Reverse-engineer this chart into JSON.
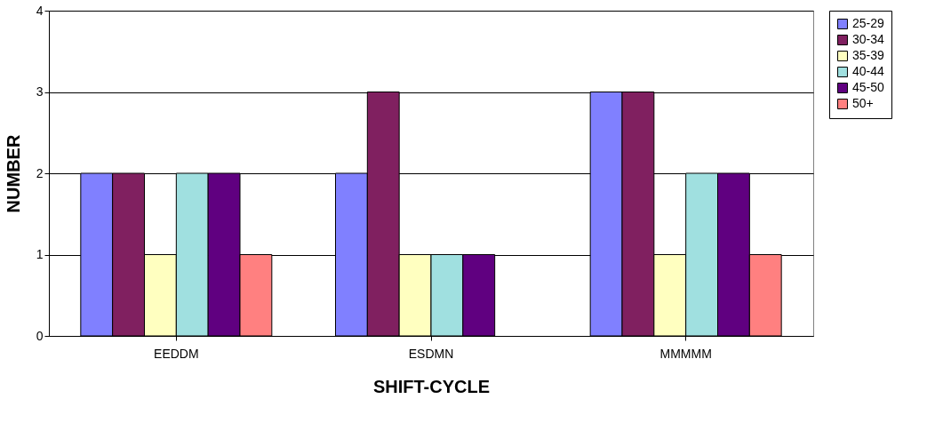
{
  "chart_data": {
    "type": "bar",
    "xlabel": "SHIFT-CYCLE",
    "ylabel": "NUMBER",
    "categories": [
      "EEDDM",
      "ESDMN",
      "MMMMM"
    ],
    "series": [
      {
        "name": "25-29",
        "color": "#8080ff",
        "values": [
          2,
          2,
          3
        ]
      },
      {
        "name": "30-34",
        "color": "#802060",
        "values": [
          2,
          3,
          3
        ]
      },
      {
        "name": "35-39",
        "color": "#ffffc0",
        "values": [
          1,
          1,
          1
        ]
      },
      {
        "name": "40-44",
        "color": "#a0e0e0",
        "values": [
          2,
          1,
          2
        ]
      },
      {
        "name": "45-50",
        "color": "#600080",
        "values": [
          2,
          1,
          2
        ]
      },
      {
        "name": "50+",
        "color": "#ff8080",
        "values": [
          1,
          null,
          1
        ]
      }
    ],
    "ylim": [
      0,
      4
    ],
    "yticks": [
      0,
      1,
      2,
      3,
      4
    ],
    "grid": "y",
    "legend": "right"
  }
}
